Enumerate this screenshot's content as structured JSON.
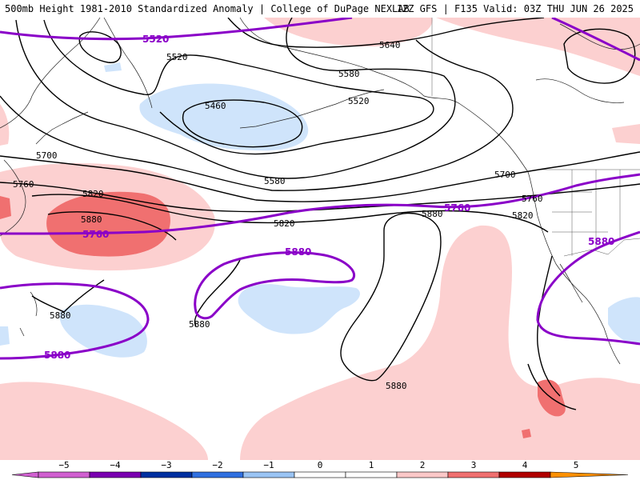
{
  "header": {
    "title_left": "500mb Height 1981-2010 Standardized Anomaly | College of DuPage NEXLAB",
    "title_right": "12Z GFS | F135 Valid: 03Z THU JUN 26 2025"
  },
  "contour_labels": {
    "c5520_a": "5520",
    "c5520_b": "5520",
    "c5520_c": "5520",
    "c5460": "5460",
    "c5640": "5640",
    "c5580_a": "5580",
    "c5580_b": "5580",
    "c5700_a": "5700",
    "c5700_b": "5700",
    "c5760_a": "5760",
    "c5760_b": "5760",
    "c5760_c": "5760",
    "c5760_d": "5760",
    "c5820_a": "5820",
    "c5820_b": "5820",
    "c5820_c": "5820",
    "c5880_a": "5880",
    "c5880_b": "5880",
    "c5880_c": "5880",
    "c5880_d": "5880",
    "c5880_e": "5880",
    "c5880_f": "5880",
    "c5880_g": "5880",
    "c5880_h": "5880"
  },
  "colors": {
    "anom_pos1": "#fcd0d0",
    "anom_pos2": "#f07070",
    "anom_neg1": "#cfe4fb",
    "highlight_contour": "#8a00c8"
  },
  "legend": {
    "ticks": [
      "−5",
      "−4",
      "−3",
      "−2",
      "−1",
      "0",
      "1",
      "2",
      "3",
      "4",
      "5"
    ],
    "colors": [
      "#d060d0",
      "#7a00b0",
      "#0030a0",
      "#3070e0",
      "#9ac4f4",
      "#ffffff",
      "#ffffff",
      "#fcc8c8",
      "#f07070",
      "#b00000",
      "#ff9000"
    ]
  }
}
